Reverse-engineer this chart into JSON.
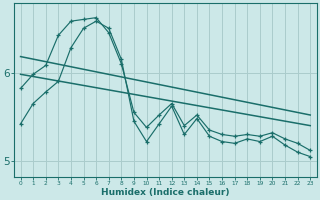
{
  "xlabel": "Humidex (Indice chaleur)",
  "bg_color": "#cce8e8",
  "grid_color": "#aacccc",
  "line_color": "#1a6e6a",
  "x_range": [
    -0.5,
    23.5
  ],
  "y_range": [
    4.82,
    6.78
  ],
  "yticks": [
    5,
    6
  ],
  "ytick_labels": [
    "5",
    "6"
  ],
  "xticks": [
    0,
    1,
    2,
    3,
    4,
    5,
    6,
    7,
    8,
    9,
    10,
    11,
    12,
    13,
    14,
    15,
    16,
    17,
    18,
    19,
    20,
    21,
    22,
    23
  ],
  "series1_x": [
    0,
    1,
    2,
    3,
    4,
    5,
    6,
    7,
    8,
    9,
    10,
    11,
    12,
    13,
    14,
    15,
    16,
    17,
    18,
    19,
    20,
    21,
    22,
    23
  ],
  "series1_y": [
    5.82,
    5.98,
    6.08,
    6.42,
    6.58,
    6.6,
    6.62,
    6.45,
    6.1,
    5.55,
    5.38,
    5.52,
    5.65,
    5.4,
    5.52,
    5.35,
    5.3,
    5.28,
    5.3,
    5.28,
    5.32,
    5.25,
    5.2,
    5.12
  ],
  "series2_x": [
    0,
    23
  ],
  "series2_y": [
    6.18,
    5.52
  ],
  "series3_x": [
    0,
    1,
    2,
    3,
    4,
    5,
    6,
    7,
    8,
    9,
    10,
    11,
    12,
    13,
    14,
    15,
    16,
    17,
    18,
    19,
    20,
    21,
    22,
    23
  ],
  "series3_y": [
    5.42,
    5.65,
    5.78,
    5.9,
    6.28,
    6.5,
    6.58,
    6.5,
    6.15,
    5.45,
    5.22,
    5.42,
    5.62,
    5.3,
    5.48,
    5.28,
    5.22,
    5.2,
    5.25,
    5.22,
    5.28,
    5.18,
    5.1,
    5.05
  ],
  "series4_x": [
    0,
    23
  ],
  "series4_y": [
    5.98,
    5.4
  ]
}
